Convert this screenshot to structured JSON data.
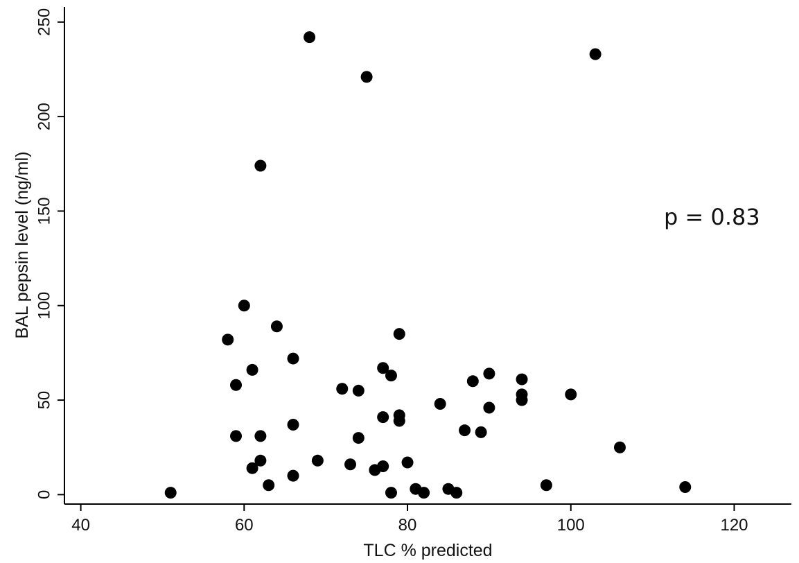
{
  "chart_data": {
    "type": "scatter",
    "title": "",
    "xlabel": "TLC % predicted",
    "ylabel": "BAL pepsin level (ng/ml)",
    "xlim": [
      38,
      127
    ],
    "ylim": [
      -5,
      258
    ],
    "xticks": [
      40,
      60,
      80,
      100,
      120
    ],
    "yticks": [
      0,
      50,
      100,
      150,
      200,
      250
    ],
    "grid": false,
    "legend": "none",
    "annotation": "p = 0.83",
    "marker_color": "#000000",
    "points": [
      {
        "x": 51,
        "y": 1
      },
      {
        "x": 58,
        "y": 82
      },
      {
        "x": 59,
        "y": 58
      },
      {
        "x": 59,
        "y": 31
      },
      {
        "x": 60,
        "y": 100
      },
      {
        "x": 61,
        "y": 66
      },
      {
        "x": 61,
        "y": 14
      },
      {
        "x": 62,
        "y": 174
      },
      {
        "x": 62,
        "y": 31
      },
      {
        "x": 62,
        "y": 18
      },
      {
        "x": 63,
        "y": 5
      },
      {
        "x": 64,
        "y": 89
      },
      {
        "x": 66,
        "y": 72
      },
      {
        "x": 66,
        "y": 37
      },
      {
        "x": 66,
        "y": 10
      },
      {
        "x": 68,
        "y": 242
      },
      {
        "x": 69,
        "y": 18
      },
      {
        "x": 72,
        "y": 56
      },
      {
        "x": 73,
        "y": 16
      },
      {
        "x": 74,
        "y": 55
      },
      {
        "x": 74,
        "y": 30
      },
      {
        "x": 75,
        "y": 221
      },
      {
        "x": 76,
        "y": 13
      },
      {
        "x": 77,
        "y": 67
      },
      {
        "x": 77,
        "y": 41
      },
      {
        "x": 77,
        "y": 15
      },
      {
        "x": 78,
        "y": 63
      },
      {
        "x": 78,
        "y": 1
      },
      {
        "x": 79,
        "y": 85
      },
      {
        "x": 79,
        "y": 42
      },
      {
        "x": 79,
        "y": 39
      },
      {
        "x": 80,
        "y": 17
      },
      {
        "x": 81,
        "y": 3
      },
      {
        "x": 82,
        "y": 1
      },
      {
        "x": 84,
        "y": 48
      },
      {
        "x": 85,
        "y": 3
      },
      {
        "x": 86,
        "y": 1
      },
      {
        "x": 87,
        "y": 34
      },
      {
        "x": 88,
        "y": 60
      },
      {
        "x": 89,
        "y": 33
      },
      {
        "x": 90,
        "y": 64
      },
      {
        "x": 90,
        "y": 46
      },
      {
        "x": 94,
        "y": 61
      },
      {
        "x": 94,
        "y": 53
      },
      {
        "x": 94,
        "y": 50
      },
      {
        "x": 97,
        "y": 5
      },
      {
        "x": 100,
        "y": 53
      },
      {
        "x": 103,
        "y": 233
      },
      {
        "x": 106,
        "y": 25
      },
      {
        "x": 114,
        "y": 4
      }
    ]
  }
}
